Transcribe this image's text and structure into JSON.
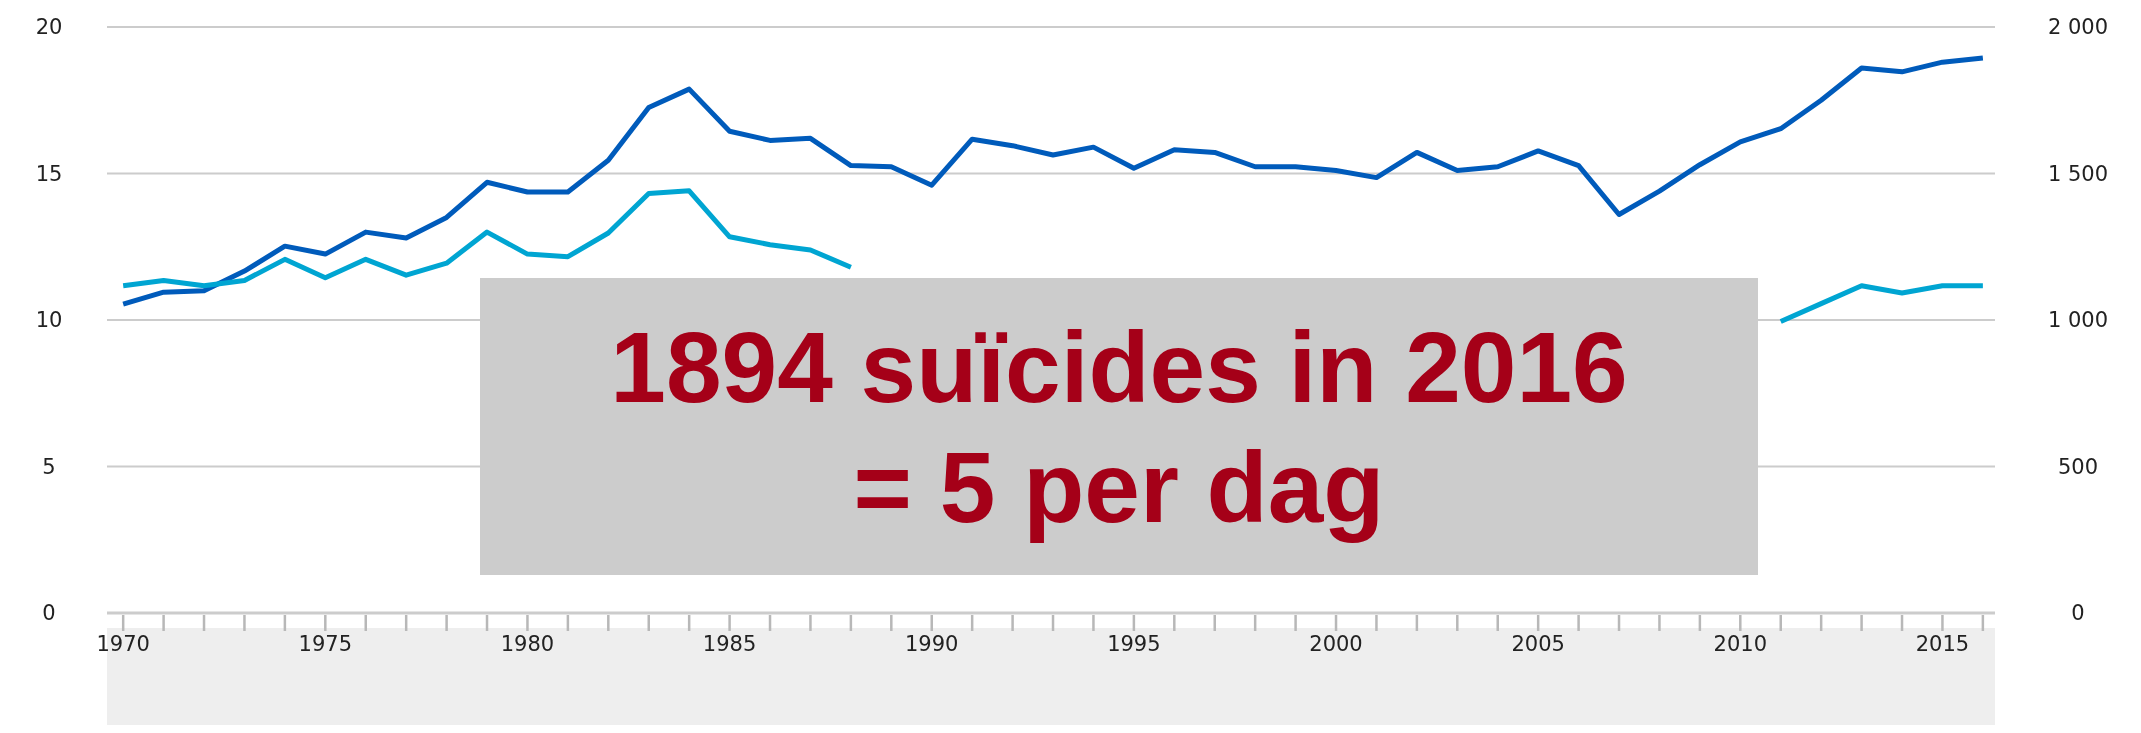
{
  "chart_data": {
    "type": "line",
    "x": [
      1970,
      1971,
      1972,
      1973,
      1974,
      1975,
      1976,
      1977,
      1978,
      1979,
      1980,
      1981,
      1982,
      1983,
      1984,
      1985,
      1986,
      1987,
      1988,
      1989,
      1990,
      1991,
      1992,
      1993,
      1994,
      1995,
      1996,
      1997,
      1998,
      1999,
      2000,
      2001,
      2002,
      2003,
      2004,
      2005,
      2006,
      2007,
      2008,
      2009,
      2010,
      2011,
      2012,
      2013,
      2014,
      2015,
      2016
    ],
    "series": [
      {
        "color": "#005bbb",
        "axis": "y2",
        "values": [
          1054,
          1095,
          1100,
          1167,
          1252,
          1225,
          1300,
          1280,
          1350,
          1470,
          1437,
          1437,
          1545,
          1725,
          1788,
          1644,
          1613,
          1620,
          1527,
          1523,
          1460,
          1617,
          1595,
          1563,
          1590,
          1518,
          1581,
          1572,
          1523,
          1523,
          1510,
          1486,
          1572,
          1510,
          1523,
          1577,
          1527,
          1360,
          1440,
          1530,
          1608,
          1653,
          1750,
          1860,
          1847,
          1880,
          1894
        ]
      },
      {
        "color": "#00a5d2",
        "values": [
          11.17,
          11.35,
          11.17,
          11.35,
          12.07,
          11.44,
          12.07,
          11.53,
          11.94,
          13.0,
          12.25,
          12.16,
          12.97,
          14.32,
          14.41,
          12.84,
          12.57,
          12.39,
          11.8,
          null,
          null,
          null,
          null,
          null,
          null,
          null,
          null,
          null,
          null,
          null,
          null,
          null,
          null,
          null,
          null,
          null,
          null,
          null,
          null,
          null,
          null,
          9.95,
          10.56,
          11.17,
          10.92,
          11.17,
          11.17
        ]
      }
    ],
    "xlim": [
      1969.6,
      2016.3
    ],
    "xticks": [
      1970,
      {
        "value": 1971,
        "label": null
      },
      {
        "value": 1972,
        "label": null
      },
      {
        "value": 1973,
        "label": null
      },
      {
        "value": 1974,
        "label": null
      },
      1975,
      {
        "value": 1976,
        "label": null
      },
      {
        "value": 1977,
        "label": null
      },
      {
        "value": 1978,
        "label": null
      },
      {
        "value": 1979,
        "label": null
      },
      1980,
      {
        "value": 1981,
        "label": null
      },
      {
        "value": 1982,
        "label": null
      },
      {
        "value": 1983,
        "label": null
      },
      {
        "value": 1984,
        "label": null
      },
      1985,
      {
        "value": 1986,
        "label": null
      },
      {
        "value": 1987,
        "label": null
      },
      {
        "value": 1988,
        "label": null
      },
      {
        "value": 1989,
        "label": null
      },
      1990,
      {
        "value": 1991,
        "label": null
      },
      {
        "value": 1992,
        "label": null
      },
      {
        "value": 1993,
        "label": null
      },
      {
        "value": 1994,
        "label": null
      },
      1995,
      {
        "value": 1996,
        "label": null
      },
      {
        "value": 1997,
        "label": null
      },
      {
        "value": 1998,
        "label": null
      },
      {
        "value": 1999,
        "label": null
      },
      2000,
      {
        "value": 2001,
        "label": null
      },
      {
        "value": 2002,
        "label": null
      },
      {
        "value": 2003,
        "label": null
      },
      {
        "value": 2004,
        "label": null
      },
      2005,
      {
        "value": 2006,
        "label": null
      },
      {
        "value": 2007,
        "label": null
      },
      {
        "value": 2008,
        "label": null
      },
      {
        "value": 2009,
        "label": null
      },
      2010,
      {
        "value": 2011,
        "label": null
      },
      {
        "value": 2012,
        "label": null
      },
      {
        "value": 2013,
        "label": null
      },
      {
        "value": 2014,
        "label": null
      },
      2015,
      {
        "value": 2016,
        "label": null
      }
    ],
    "ylim": [
      0,
      20
    ],
    "yticks": [
      0,
      5,
      10,
      15,
      20
    ],
    "y2lim": [
      0,
      2000
    ],
    "y2ticks": [
      0,
      {
        "value": 500,
        "label": "500"
      },
      {
        "value": 1000,
        "label": "1 000"
      },
      {
        "value": 1500,
        "label": "1 500"
      },
      {
        "value": 2000,
        "label": "2 000"
      }
    ],
    "grid": "y",
    "legend": false,
    "marker": "none",
    "line_style": "solid",
    "annotations": [
      "1894 suïcides in 2016",
      "= 5 per dag"
    ]
  }
}
